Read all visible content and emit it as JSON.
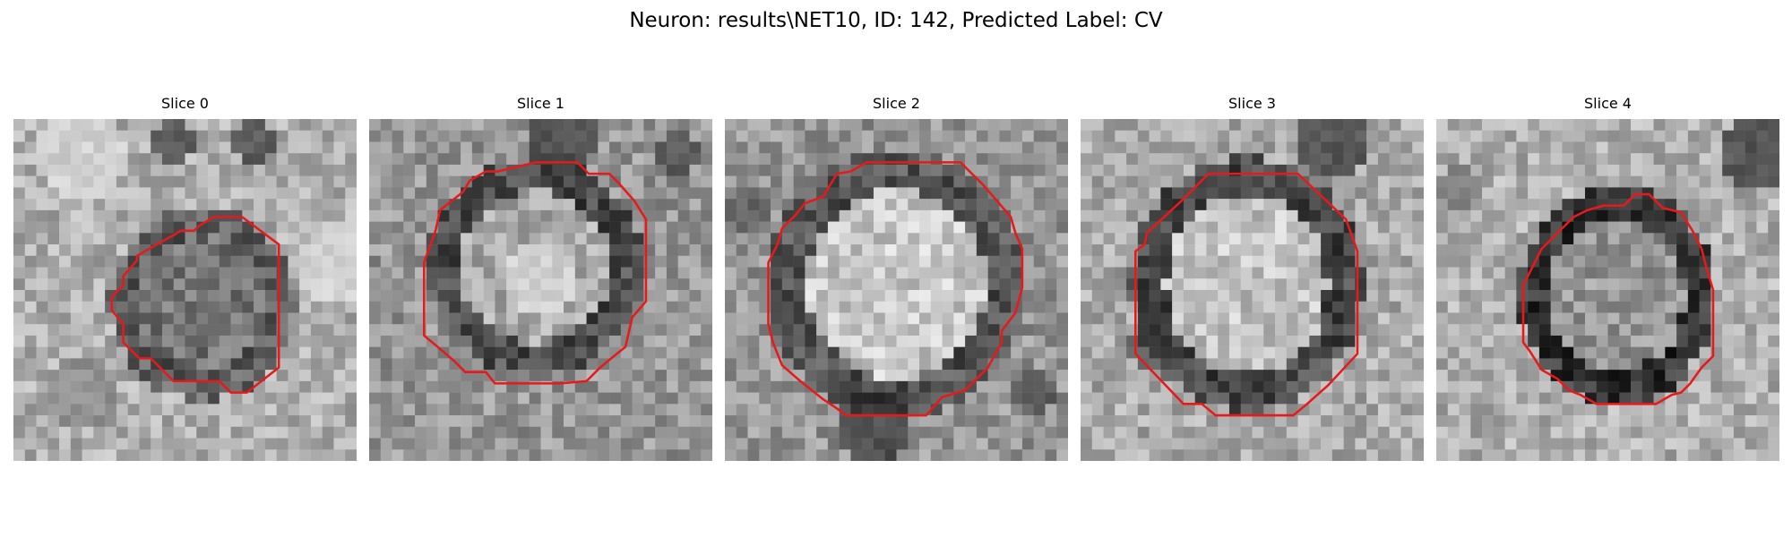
{
  "figure": {
    "title": "Neuron: results\\NET10, ID: 142, Predicted Label: CV",
    "contour_color": "#e8191b",
    "colormap": "gray",
    "panels": [
      {
        "title": "Slice 0"
      },
      {
        "title": "Slice 1"
      },
      {
        "title": "Slice 2"
      },
      {
        "title": "Slice 3"
      },
      {
        "title": "Slice 4"
      }
    ]
  }
}
